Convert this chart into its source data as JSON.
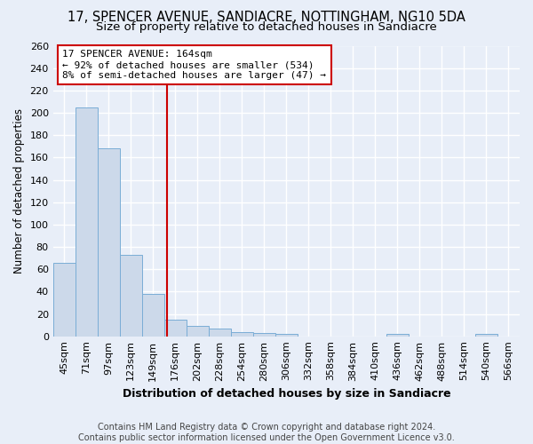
{
  "title": "17, SPENCER AVENUE, SANDIACRE, NOTTINGHAM, NG10 5DA",
  "subtitle": "Size of property relative to detached houses in Sandiacre",
  "xlabel": "Distribution of detached houses by size in Sandiacre",
  "ylabel": "Number of detached properties",
  "bar_color": "#ccd9ea",
  "bar_edge_color": "#7aadd6",
  "background_color": "#e8eef8",
  "grid_color": "#ffffff",
  "categories": [
    "45sqm",
    "71sqm",
    "97sqm",
    "123sqm",
    "149sqm",
    "176sqm",
    "202sqm",
    "228sqm",
    "254sqm",
    "280sqm",
    "306sqm",
    "332sqm",
    "358sqm",
    "384sqm",
    "410sqm",
    "436sqm",
    "462sqm",
    "488sqm",
    "514sqm",
    "540sqm",
    "566sqm"
  ],
  "values": [
    66,
    205,
    168,
    73,
    38,
    15,
    9,
    7,
    4,
    3,
    2,
    0,
    0,
    0,
    0,
    2,
    0,
    0,
    0,
    2,
    0
  ],
  "ylim": [
    0,
    260
  ],
  "yticks": [
    0,
    20,
    40,
    60,
    80,
    100,
    120,
    140,
    160,
    180,
    200,
    220,
    240,
    260
  ],
  "property_line_x": 4.62,
  "property_line_color": "#cc0000",
  "annotation_line1": "17 SPENCER AVENUE: 164sqm",
  "annotation_line2": "← 92% of detached houses are smaller (534)",
  "annotation_line3": "8% of semi-detached houses are larger (47) →",
  "annotation_box_color": "#ffffff",
  "annotation_box_edge_color": "#cc0000",
  "footer_text": "Contains HM Land Registry data © Crown copyright and database right 2024.\nContains public sector information licensed under the Open Government Licence v3.0.",
  "title_fontsize": 10.5,
  "subtitle_fontsize": 9.5,
  "annotation_fontsize": 8.0,
  "footer_fontsize": 7.0,
  "ylabel_fontsize": 8.5,
  "xlabel_fontsize": 9.0
}
